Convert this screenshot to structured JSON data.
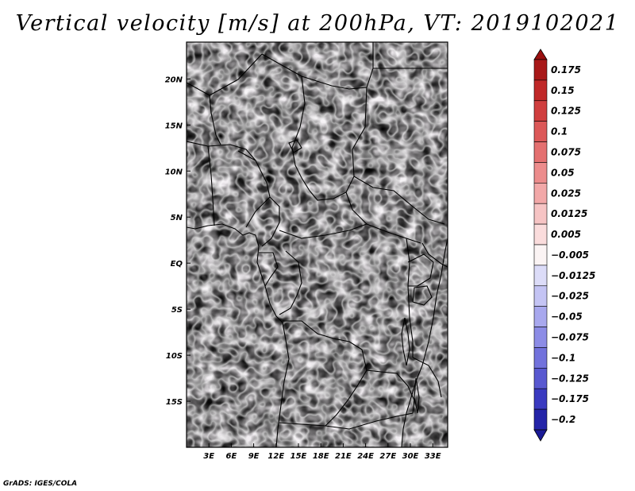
{
  "title": "Vertical velocity [m/s] at 200hPa, VT: 2019102021",
  "credit": "GrADS: IGES/COLA",
  "map": {
    "variable": "Vertical velocity",
    "units": "m/s",
    "level": "200hPa",
    "valid_time": "2019102021",
    "lon_range": [
      0,
      35
    ],
    "lat_range": [
      -20,
      24
    ],
    "lon_ticks": [
      {
        "value": 3,
        "label": "3E"
      },
      {
        "value": 6,
        "label": "6E"
      },
      {
        "value": 9,
        "label": "9E"
      },
      {
        "value": 12,
        "label": "12E"
      },
      {
        "value": 15,
        "label": "15E"
      },
      {
        "value": 18,
        "label": "18E"
      },
      {
        "value": 21,
        "label": "21E"
      },
      {
        "value": 24,
        "label": "24E"
      },
      {
        "value": 27,
        "label": "27E"
      },
      {
        "value": 30,
        "label": "30E"
      },
      {
        "value": 33,
        "label": "33E"
      }
    ],
    "lat_ticks": [
      {
        "value": 20,
        "label": "20N"
      },
      {
        "value": 15,
        "label": "15N"
      },
      {
        "value": 10,
        "label": "10N"
      },
      {
        "value": 5,
        "label": "5N"
      },
      {
        "value": 0,
        "label": "EQ"
      },
      {
        "value": -5,
        "label": "5S"
      },
      {
        "value": -10,
        "label": "10S"
      },
      {
        "value": -15,
        "label": "15S"
      }
    ]
  },
  "colorbar": {
    "levels": [
      {
        "label": "0.175",
        "color": "#a81818"
      },
      {
        "label": "0.15",
        "color": "#c02828"
      },
      {
        "label": "0.125",
        "color": "#d03e3e"
      },
      {
        "label": "0.1",
        "color": "#dc5858"
      },
      {
        "label": "0.075",
        "color": "#e47070"
      },
      {
        "label": "0.05",
        "color": "#ec8c8c"
      },
      {
        "label": "0.025",
        "color": "#f2a8a8"
      },
      {
        "label": "0.0125",
        "color": "#f6c4c4"
      },
      {
        "label": "0.005",
        "color": "#fadcdc"
      },
      {
        "label": "−0.005",
        "color": "#fbf4f4"
      },
      {
        "label": "−0.0125",
        "color": "#dcdcf8"
      },
      {
        "label": "−0.025",
        "color": "#c4c4f4"
      },
      {
        "label": "−0.05",
        "color": "#a8a8ee"
      },
      {
        "label": "−0.075",
        "color": "#8c8ce6"
      },
      {
        "label": "−0.1",
        "color": "#7272dc"
      },
      {
        "label": "−0.125",
        "color": "#5858d0"
      },
      {
        "label": "−0.175",
        "color": "#3a3ac0"
      },
      {
        "label": "−0.2",
        "color": "#2424a8"
      }
    ],
    "top_color": "#9a1010",
    "bottom_color": "#1a1a96"
  }
}
